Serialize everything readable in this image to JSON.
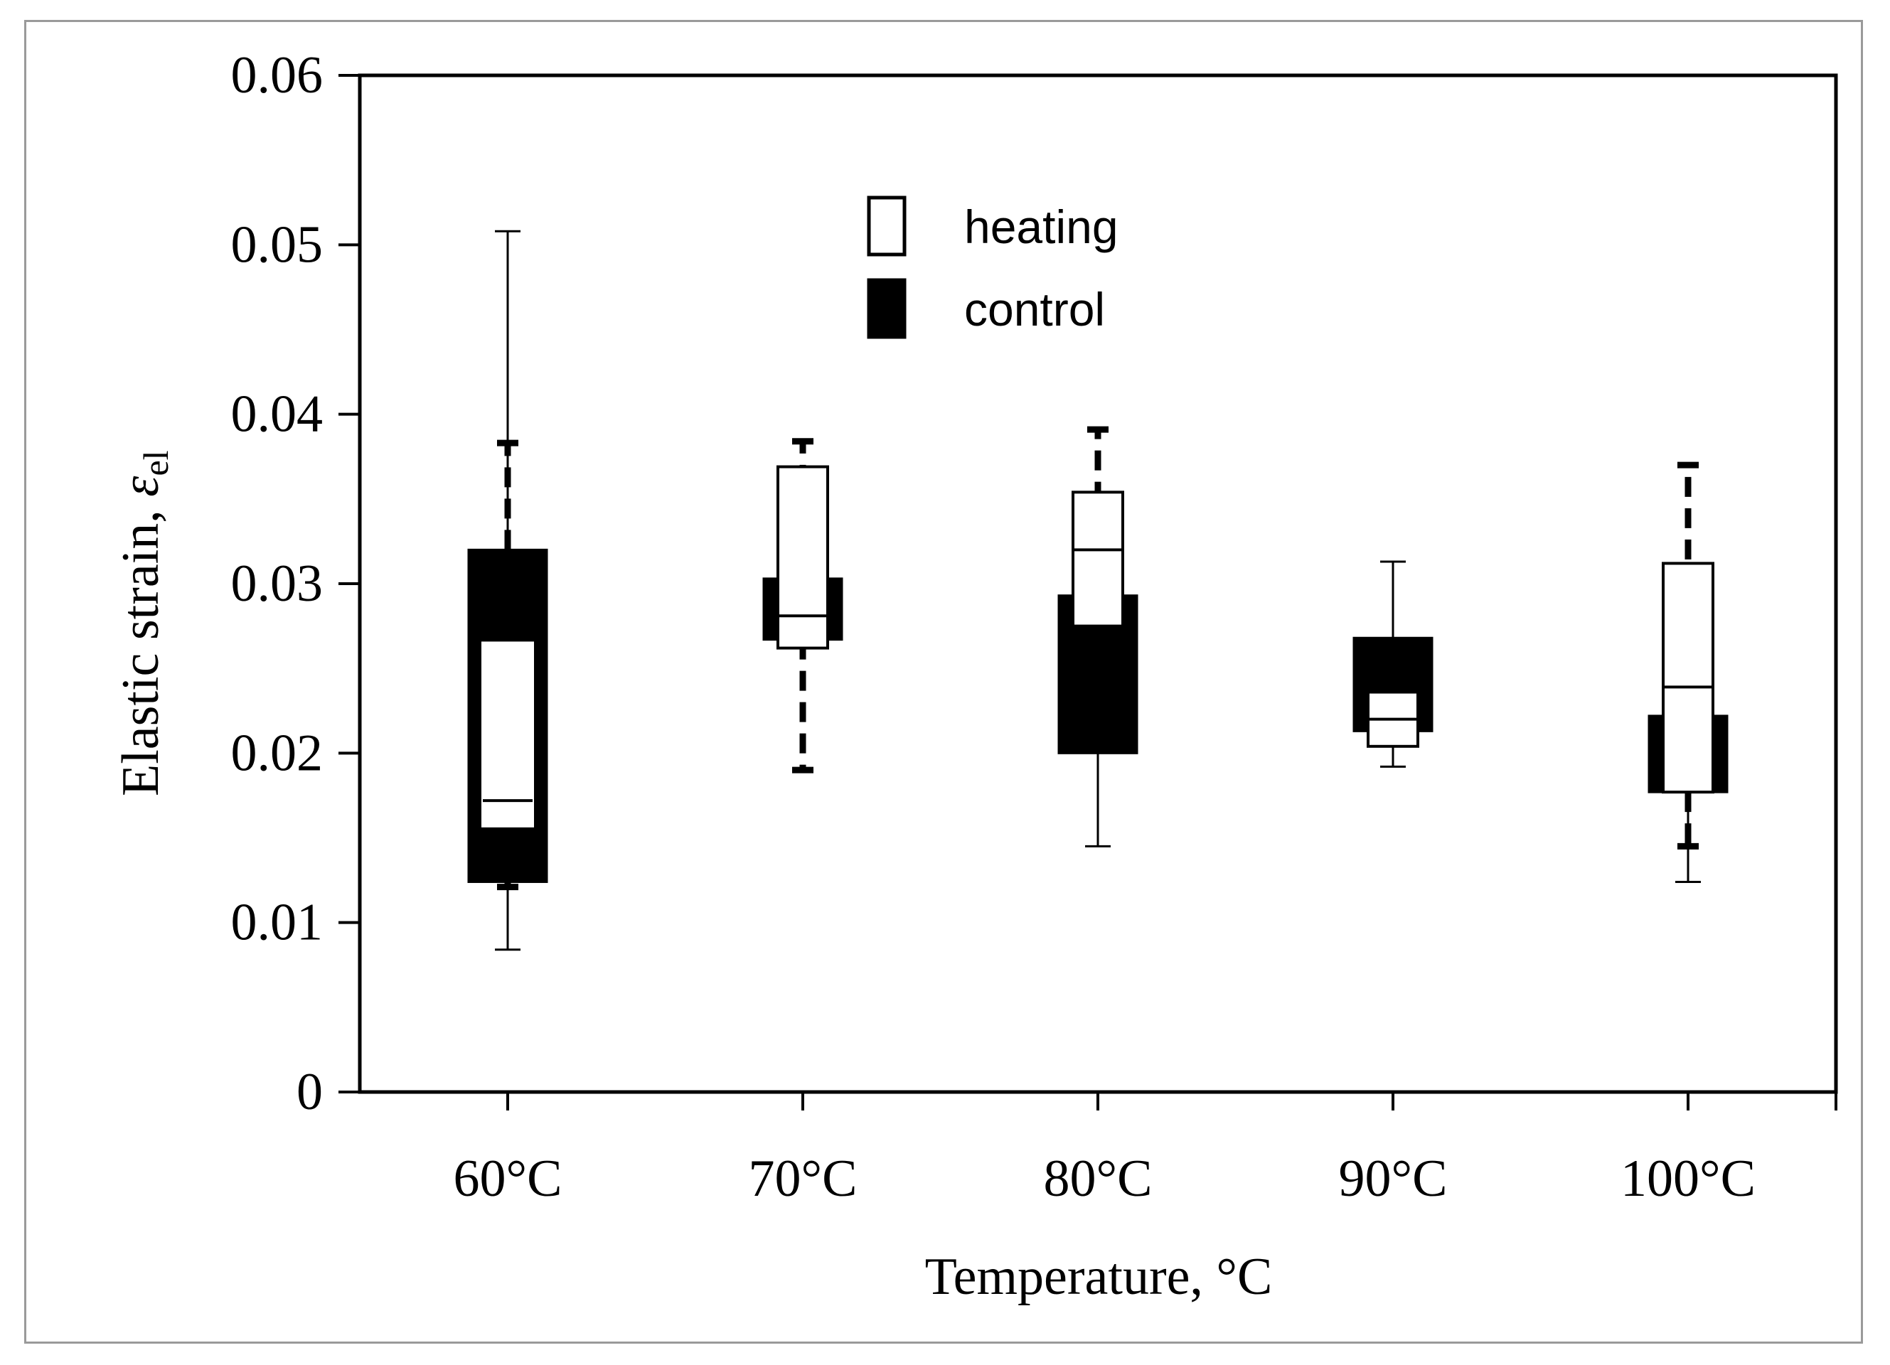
{
  "chart_data": {
    "type": "box",
    "xlabel": "Temperature, °C",
    "ylabel": "Elastic strain, ",
    "ylabel_symbol": "ε",
    "ylabel_subscript": "el",
    "ylim": [
      0,
      0.06
    ],
    "yticks": [
      "0",
      "0.01",
      "0.02",
      "0.03",
      "0.04",
      "0.05",
      "0.06"
    ],
    "categories": [
      "60°C",
      "70°C",
      "80°C",
      "90°C",
      "100°C"
    ],
    "legend_position": "top-center",
    "series": [
      {
        "name": "heating",
        "fill": "#ffffff",
        "whisker_style": "solid",
        "boxes": [
          {
            "min": 0.0084,
            "q1": 0.0157,
            "median": 0.0172,
            "q3": 0.0265,
            "max": 0.0508
          },
          {
            "min": 0.0262,
            "q1": 0.0262,
            "median": 0.0281,
            "q3": 0.0369,
            "max": 0.0369
          },
          {
            "min": 0.0145,
            "q1": 0.0275,
            "median": 0.032,
            "q3": 0.0354,
            "max": 0.0354
          },
          {
            "min": 0.0192,
            "q1": 0.0204,
            "median": 0.022,
            "q3": 0.0236,
            "max": 0.0313
          },
          {
            "min": 0.0124,
            "q1": 0.0177,
            "median": 0.0239,
            "q3": 0.0312,
            "max": 0.0312
          }
        ]
      },
      {
        "name": "control",
        "fill": "#000000",
        "whisker_style": "dashed",
        "boxes": [
          {
            "min": 0.0121,
            "q1": 0.0124,
            "q3": 0.032,
            "max": 0.0383
          },
          {
            "min": 0.019,
            "q1": 0.0267,
            "q3": 0.0303,
            "max": 0.0384
          },
          {
            "min": 0.02,
            "q1": 0.02,
            "q3": 0.0293,
            "max": 0.0391
          },
          {
            "min": 0.0213,
            "q1": 0.0213,
            "q3": 0.0268,
            "max": 0.0268
          },
          {
            "min": 0.0145,
            "q1": 0.0177,
            "q3": 0.0222,
            "max": 0.037
          }
        ]
      }
    ]
  }
}
